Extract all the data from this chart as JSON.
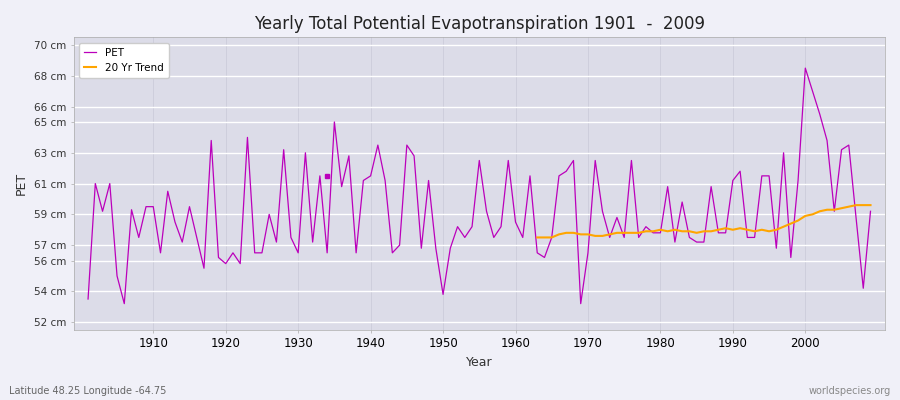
{
  "title": "Yearly Total Potential Evapotranspiration 1901  -  2009",
  "xlabel": "Year",
  "ylabel": "PET",
  "subtitle": "Latitude 48.25 Longitude -64.75",
  "watermark": "worldspecies.org",
  "pet_color": "#bb00bb",
  "trend_color": "#ffa500",
  "background_color": "#f0f0f8",
  "plot_bg_color": "#dcdce8",
  "ylim_min": 51.5,
  "ylim_max": 70.5,
  "ytick_vals": [
    52,
    54,
    56,
    57,
    59,
    61,
    63,
    65,
    66,
    68,
    70
  ],
  "ytick_labels": [
    "52 cm",
    "54 cm",
    "56 cm",
    "57 cm",
    "59 cm",
    "61 cm",
    "63 cm",
    "65 cm",
    "66 cm",
    "68 cm",
    "70 cm"
  ],
  "xlim_min": 1899,
  "xlim_max": 2011,
  "xticks": [
    1910,
    1920,
    1930,
    1940,
    1950,
    1960,
    1970,
    1980,
    1990,
    2000
  ],
  "years": [
    1901,
    1902,
    1903,
    1904,
    1905,
    1906,
    1907,
    1908,
    1909,
    1910,
    1911,
    1912,
    1913,
    1914,
    1915,
    1916,
    1917,
    1918,
    1919,
    1920,
    1921,
    1922,
    1923,
    1924,
    1925,
    1926,
    1927,
    1928,
    1929,
    1930,
    1931,
    1932,
    1933,
    1934,
    1935,
    1936,
    1937,
    1938,
    1939,
    1940,
    1941,
    1942,
    1943,
    1944,
    1945,
    1946,
    1947,
    1948,
    1949,
    1950,
    1951,
    1952,
    1953,
    1954,
    1955,
    1956,
    1957,
    1958,
    1959,
    1960,
    1961,
    1962,
    1963,
    1964,
    1965,
    1966,
    1967,
    1968,
    1969,
    1970,
    1971,
    1972,
    1973,
    1974,
    1975,
    1976,
    1977,
    1978,
    1979,
    1980,
    1981,
    1982,
    1983,
    1984,
    1985,
    1986,
    1987,
    1988,
    1989,
    1990,
    1991,
    1992,
    1993,
    1994,
    1995,
    1996,
    1997,
    1998,
    1999,
    2000,
    2001,
    2002,
    2003,
    2004,
    2005,
    2006,
    2007,
    2008,
    2009
  ],
  "pet_values": [
    53.5,
    61.0,
    59.2,
    61.0,
    55.0,
    53.2,
    59.3,
    57.5,
    59.5,
    59.5,
    56.5,
    60.5,
    58.5,
    57.2,
    59.5,
    57.5,
    55.5,
    63.8,
    56.2,
    55.8,
    56.5,
    55.8,
    64.0,
    56.5,
    56.5,
    59.0,
    57.2,
    63.2,
    57.5,
    56.5,
    63.0,
    57.2,
    61.5,
    56.5,
    65.0,
    60.8,
    62.8,
    56.5,
    61.2,
    61.5,
    63.5,
    61.2,
    56.5,
    57.0,
    63.5,
    62.8,
    56.8,
    61.2,
    56.8,
    53.8,
    56.8,
    58.2,
    57.5,
    58.2,
    62.5,
    59.2,
    57.5,
    58.2,
    62.5,
    58.5,
    57.5,
    61.5,
    56.5,
    56.2,
    57.5,
    61.5,
    61.8,
    62.5,
    53.2,
    56.5,
    62.5,
    59.2,
    57.5,
    58.8,
    57.5,
    62.5,
    57.5,
    58.2,
    57.8,
    57.8,
    60.8,
    57.2,
    59.8,
    57.5,
    57.2,
    57.2,
    60.8,
    57.8,
    57.8,
    61.2,
    61.8,
    57.5,
    57.5,
    61.5,
    61.5,
    56.8,
    63.0,
    56.2,
    61.2,
    68.5,
    67.0,
    65.5,
    63.8,
    59.2,
    63.2,
    63.5,
    58.8,
    54.2,
    59.2
  ],
  "dot_year": 1934,
  "dot_value": 61.5,
  "trend_years": [
    1963,
    1964,
    1965,
    1966,
    1967,
    1968,
    1969,
    1970,
    1971,
    1972,
    1973,
    1974,
    1975,
    1976,
    1977,
    1978,
    1979,
    1980,
    1981,
    1982,
    1983,
    1984,
    1985,
    1986,
    1987,
    1988,
    1989,
    1990,
    1991,
    1992,
    1993,
    1994,
    1995,
    1996,
    1997,
    1998,
    1999,
    2000,
    2001,
    2002,
    2003,
    2004,
    2005,
    2006,
    2007,
    2008,
    2009
  ],
  "trend_values": [
    57.5,
    57.5,
    57.5,
    57.7,
    57.8,
    57.8,
    57.7,
    57.7,
    57.6,
    57.6,
    57.7,
    57.8,
    57.8,
    57.8,
    57.8,
    57.9,
    57.9,
    58.0,
    57.9,
    58.0,
    57.9,
    57.9,
    57.8,
    57.9,
    57.9,
    58.0,
    58.1,
    58.0,
    58.1,
    58.0,
    57.9,
    58.0,
    57.9,
    58.0,
    58.2,
    58.4,
    58.6,
    58.9,
    59.0,
    59.2,
    59.3,
    59.3,
    59.4,
    59.5,
    59.6,
    59.6,
    59.6
  ]
}
